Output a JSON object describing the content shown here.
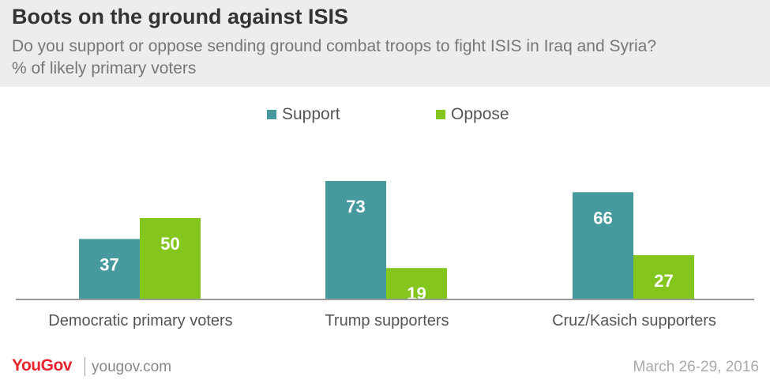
{
  "header": {
    "title": "Boots on the ground against ISIS",
    "subtitle": "Do you support or oppose sending ground combat troops to fight ISIS in Iraq and Syria?",
    "note": "% of likely primary voters"
  },
  "colors": {
    "support": "#46999d",
    "oppose": "#84c61e",
    "axis": "#999999",
    "brand": "#e8232f"
  },
  "chart_data": {
    "type": "bar",
    "categories": [
      "Democratic primary voters",
      "Trump supporters",
      "Cruz/Kasich supporters"
    ],
    "series": [
      {
        "name": "Support",
        "values": [
          37,
          73,
          66
        ]
      },
      {
        "name": "Oppose",
        "values": [
          50,
          19,
          27
        ]
      }
    ],
    "ylim": [
      0,
      73
    ],
    "legend": "top-center",
    "grid": false
  },
  "footer": {
    "logo": "YouGov",
    "site": "yougov.com",
    "date": "March 26-29, 2016"
  }
}
